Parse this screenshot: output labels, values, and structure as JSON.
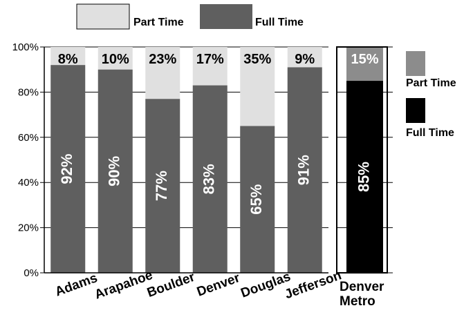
{
  "chart_data": [
    {
      "type": "bar",
      "stacked": true,
      "categories": [
        "Adams",
        "Arapahoe",
        "Boulder",
        "Denver",
        "Douglas",
        "Jefferson"
      ],
      "series": [
        {
          "name": "Full Time",
          "values": [
            92,
            90,
            77,
            83,
            65,
            91
          ],
          "labels": [
            "92%",
            "90%",
            "77%",
            "83%",
            "65%",
            "91%"
          ],
          "color": "#5f5f5f"
        },
        {
          "name": "Part Time",
          "values": [
            8,
            10,
            23,
            17,
            35,
            9
          ],
          "labels": [
            "8%",
            "10%",
            "23%",
            "17%",
            "35%",
            "9%"
          ],
          "color": "#e0e0e0"
        }
      ],
      "ylim": [
        0,
        100
      ],
      "yticks": [
        "0%",
        "20%",
        "40%",
        "60%",
        "80%",
        "100%"
      ],
      "grid": true,
      "legend": "top"
    },
    {
      "type": "bar",
      "stacked": true,
      "categories": [
        "Denver Metro"
      ],
      "category_lines": [
        "Denver",
        "Metro"
      ],
      "series": [
        {
          "name": "Full Time",
          "values": [
            85
          ],
          "labels": [
            "85%"
          ],
          "color": "#000000"
        },
        {
          "name": "Part Time",
          "values": [
            15
          ],
          "labels": [
            "15%"
          ],
          "color": "#8c8c8c"
        }
      ],
      "ylim": [
        0,
        100
      ],
      "grid": true,
      "legend": "right"
    }
  ]
}
